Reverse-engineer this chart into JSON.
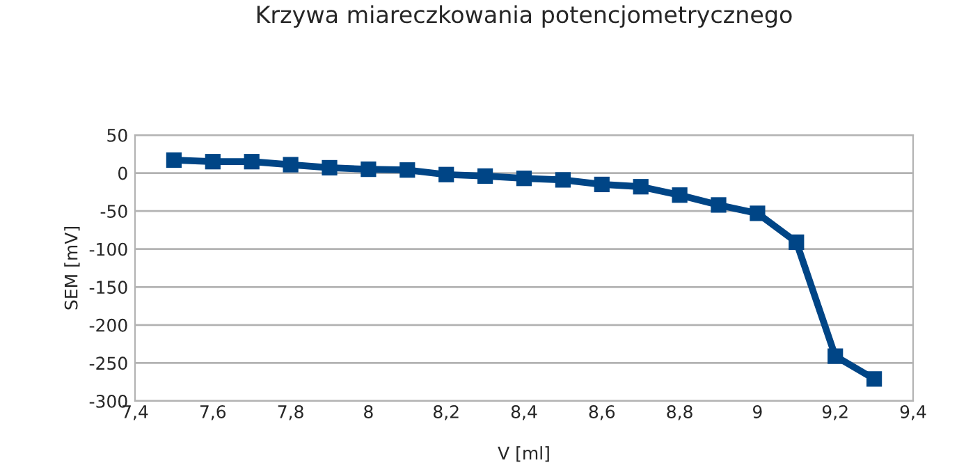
{
  "chart_data": {
    "type": "line",
    "title": "Krzywa miareczkowania potencjometrycznego",
    "xlabel": "V [ml]",
    "ylabel": "SEM [mV]",
    "x": [
      7.5,
      7.6,
      7.7,
      7.8,
      7.9,
      8.0,
      8.1,
      8.2,
      8.3,
      8.4,
      8.5,
      8.6,
      8.7,
      8.8,
      8.9,
      9.0,
      9.1,
      9.2,
      9.3
    ],
    "series": [
      {
        "color": "#004586",
        "values": [
          17,
          15,
          15,
          11,
          7,
          5,
          4,
          -2,
          -4,
          -7,
          -9,
          -15,
          -18,
          -29,
          -42,
          -53,
          -91,
          -241,
          -271
        ]
      }
    ],
    "xlim": [
      7.4,
      9.4
    ],
    "xticks": [
      {
        "value": 7.4,
        "label": "7,4"
      },
      {
        "value": 7.6,
        "label": "7,6"
      },
      {
        "value": 7.8,
        "label": "7,8"
      },
      {
        "value": 8,
        "label": "8"
      },
      {
        "value": 8.2,
        "label": "8,2"
      },
      {
        "value": 8.4,
        "label": "8,4"
      },
      {
        "value": 8.6,
        "label": "8,6"
      },
      {
        "value": 8.8,
        "label": "8,8"
      },
      {
        "value": 9,
        "label": "9"
      },
      {
        "value": 9.2,
        "label": "9,2"
      },
      {
        "value": 9.4,
        "label": "9,4"
      }
    ],
    "ylim": [
      -300,
      50
    ],
    "yticks": [
      -300,
      -250,
      -200,
      -150,
      -100,
      -50,
      0,
      50
    ],
    "grid": "y",
    "marker": "square",
    "line_style": "solid",
    "legend": false
  }
}
